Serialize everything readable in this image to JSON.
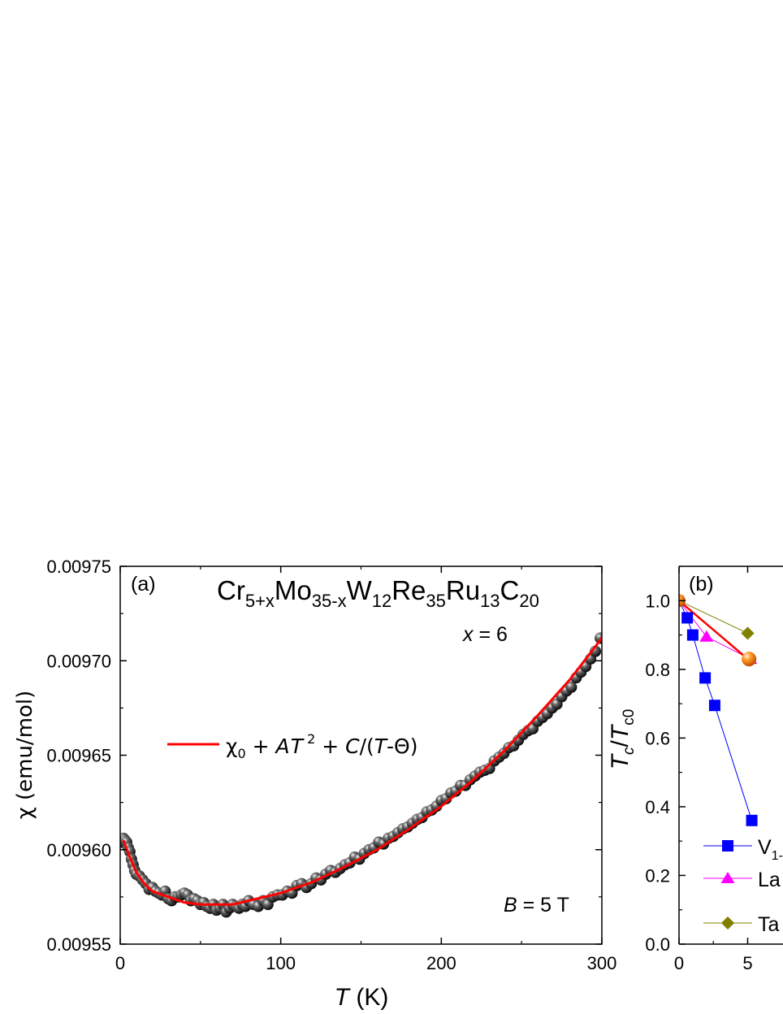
{
  "chart_data": [
    {
      "type": "scatter",
      "panel_label": "(a)",
      "compound": {
        "base": [
          "Cr",
          "Mo",
          "W",
          "Re",
          "Ru",
          "C"
        ],
        "subs": [
          "5+x",
          "35-x",
          "12",
          "35",
          "13",
          "20"
        ]
      },
      "x_annotation": {
        "var": "x",
        "rest": " = 6"
      },
      "b_annotation": {
        "var": "B",
        "rest": " = 5 T"
      },
      "xlabel": {
        "var": "T",
        "rest": " (K)"
      },
      "ylabel": "χ (emu/mol)",
      "xlim": [
        0,
        300
      ],
      "ylim": [
        0.00955,
        0.00975
      ],
      "xticks": [
        0,
        100,
        200,
        300
      ],
      "xtick_labels": [
        "0",
        "100",
        "200",
        "300"
      ],
      "yticks": [
        0.00955,
        0.0096,
        0.00965,
        0.0097,
        0.00975
      ],
      "ytick_labels": [
        "0.00955",
        "0.00960",
        "0.00965",
        "0.00970",
        "0.00975"
      ],
      "legend": {
        "parts": [
          "χ",
          "0",
          " + ",
          "A",
          "T",
          "2",
          " + ",
          "C",
          "/(",
          "T",
          "-Θ)"
        ],
        "line_color": "#ff0000",
        "placement": "middle-left"
      },
      "fit": {
        "color": "#ff0000",
        "x": [
          2,
          5,
          10,
          15,
          20,
          30,
          40,
          50,
          60,
          70,
          80,
          100,
          120,
          140,
          160,
          180,
          200,
          220,
          240,
          260,
          280,
          300
        ],
        "y": [
          0.009605,
          0.009598,
          0.009588,
          0.009582,
          0.009578,
          0.009575,
          0.009572,
          0.009571,
          0.009571,
          0.009571,
          0.009573,
          0.009577,
          0.009583,
          0.009591,
          0.0096,
          0.009611,
          0.009623,
          0.009637,
          0.009653,
          0.009671,
          0.00969,
          0.009712
        ]
      },
      "series": [
        {
          "marker": "sphere",
          "color": "#222222",
          "x": [
            1,
            2,
            3,
            4,
            5,
            6,
            7,
            8,
            9,
            10,
            12,
            14,
            16,
            18,
            20,
            22,
            24,
            26,
            28,
            30,
            32,
            34,
            36,
            38,
            40,
            42,
            44,
            46,
            48,
            50,
            52,
            54,
            56,
            58,
            60,
            62,
            64,
            66,
            68,
            70,
            72,
            74,
            76,
            78,
            80,
            83,
            86,
            89,
            92,
            95,
            98,
            101,
            104,
            107,
            110,
            113,
            116,
            119,
            122,
            125,
            128,
            131,
            134,
            137,
            140,
            143,
            146,
            149,
            152,
            155,
            158,
            161,
            164,
            167,
            170,
            173,
            176,
            179,
            182,
            185,
            188,
            191,
            194,
            197,
            200,
            203,
            206,
            209,
            212,
            215,
            218,
            221,
            224,
            227,
            230,
            233,
            236,
            239,
            242,
            245,
            248,
            251,
            254,
            257,
            260,
            263,
            266,
            269,
            272,
            275,
            278,
            281,
            284,
            287,
            290,
            293,
            296,
            299
          ],
          "y": [
            0.009604,
            0.009606,
            0.009605,
            0.009604,
            0.009601,
            0.009599,
            0.009595,
            0.009592,
            0.009589,
            0.009587,
            0.009586,
            0.009584,
            0.009582,
            0.009579,
            0.00958,
            0.009578,
            0.009577,
            0.009576,
            0.009578,
            0.009574,
            0.009573,
            0.009575,
            0.009575,
            0.009576,
            0.009577,
            0.009576,
            0.009573,
            0.009574,
            0.009573,
            0.009571,
            0.009572,
            0.00957,
            0.009569,
            0.009571,
            0.009568,
            0.009569,
            0.009571,
            0.009567,
            0.009569,
            0.009571,
            0.00957,
            0.009569,
            0.009571,
            0.00957,
            0.009573,
            0.009571,
            0.00957,
            0.009573,
            0.009571,
            0.009575,
            0.009576,
            0.009576,
            0.009578,
            0.009577,
            0.009581,
            0.009582,
            0.00958,
            0.009582,
            0.009585,
            0.009584,
            0.009587,
            0.009589,
            0.009588,
            0.00959,
            0.009592,
            0.009593,
            0.009596,
            0.009595,
            0.009598,
            0.0096,
            0.009601,
            0.009604,
            0.009603,
            0.009606,
            0.009607,
            0.009609,
            0.009611,
            0.009612,
            0.009614,
            0.009616,
            0.009617,
            0.00962,
            0.009621,
            0.009623,
            0.009626,
            0.009627,
            0.00963,
            0.009631,
            0.009634,
            0.009634,
            0.009637,
            0.009639,
            0.009641,
            0.009642,
            0.009643,
            0.009647,
            0.009649,
            0.009651,
            0.009654,
            0.009655,
            0.009658,
            0.009661,
            0.009663,
            0.009664,
            0.009668,
            0.00967,
            0.009672,
            0.009675,
            0.009677,
            0.009681,
            0.009684,
            0.009686,
            0.009691,
            0.009694,
            0.009697,
            0.009701,
            0.009705,
            0.009712
          ]
        }
      ]
    },
    {
      "type": "line",
      "panel_label": "(b)",
      "ylabel": {
        "var1": "T",
        "sub1": "c",
        "var2": "T",
        "sub2": "c0"
      },
      "xlim": [
        0,
        10
      ],
      "ylim": [
        0,
        1.1
      ],
      "xticks": [
        0,
        5
      ],
      "xtick_labels": [
        "0",
        "5"
      ],
      "yticks": [
        0,
        0.2,
        0.4,
        0.6,
        0.8,
        1.0
      ],
      "ytick_labels": [
        "0.0",
        "0.2",
        "0.4",
        "0.6",
        "0.8",
        "1.0"
      ],
      "legend": {
        "placement": "bottom-left",
        "entries": [
          {
            "label": "V",
            "sub": "1-",
            "marker": "square",
            "color": "#0000ff"
          },
          {
            "label": "La",
            "sub": "",
            "marker": "triangle",
            "color": "#ff00ff"
          },
          {
            "label": "Ta",
            "sub": "",
            "marker": "diamond",
            "color": "#808000"
          }
        ]
      },
      "fit": {
        "color": "#ff0000",
        "x": [
          0,
          5.3
        ],
        "y": [
          1.0,
          0.82
        ]
      },
      "series": [
        {
          "marker": "square",
          "color": "#0000ff",
          "x": [
            0,
            0.6,
            1.0,
            1.9,
            2.6,
            5.3
          ],
          "y": [
            1.0,
            0.95,
            0.9,
            0.775,
            0.695,
            0.36
          ]
        },
        {
          "marker": "triangle",
          "color": "#ff00ff",
          "x": [
            0,
            2.0,
            5.2
          ],
          "y": [
            1.0,
            0.895,
            0.83
          ]
        },
        {
          "marker": "diamond",
          "color": "#808000",
          "x": [
            0,
            5.0
          ],
          "y": [
            1.0,
            0.905
          ]
        },
        {
          "marker": "sphere",
          "color": "#ff8c1a",
          "x": [
            0,
            5.1
          ],
          "y": [
            1.0,
            0.83
          ]
        }
      ]
    }
  ]
}
